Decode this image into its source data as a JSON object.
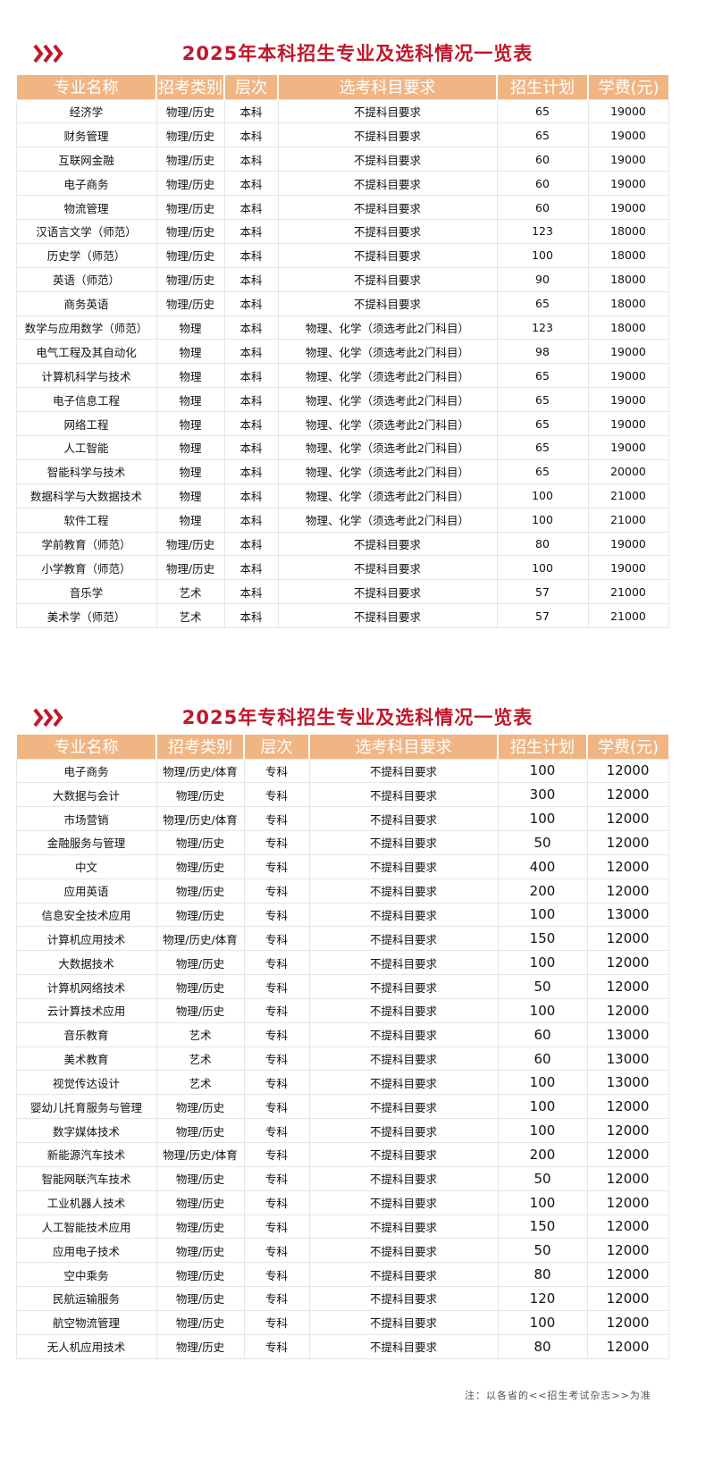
{
  "colors": {
    "title": "#c0182a",
    "header_bg": "#f0b583",
    "header_text": "#ffffff"
  },
  "headers": [
    "专业名称",
    "招考类别",
    "层次",
    "选考科目要求",
    "招生计划",
    "学费(元)"
  ],
  "benke": {
    "title": "2025年本科招生专业及选科情况一览表",
    "icon": "triple-chevron-right-icon",
    "rows": [
      [
        "经济学",
        "物理/历史",
        "本科",
        "不提科目要求",
        "65",
        "19000"
      ],
      [
        "财务管理",
        "物理/历史",
        "本科",
        "不提科目要求",
        "65",
        "19000"
      ],
      [
        "互联网金融",
        "物理/历史",
        "本科",
        "不提科目要求",
        "60",
        "19000"
      ],
      [
        "电子商务",
        "物理/历史",
        "本科",
        "不提科目要求",
        "60",
        "19000"
      ],
      [
        "物流管理",
        "物理/历史",
        "本科",
        "不提科目要求",
        "60",
        "19000"
      ],
      [
        "汉语言文学（师范）",
        "物理/历史",
        "本科",
        "不提科目要求",
        "123",
        "18000"
      ],
      [
        "历史学（师范）",
        "物理/历史",
        "本科",
        "不提科目要求",
        "100",
        "18000"
      ],
      [
        "英语（师范）",
        "物理/历史",
        "本科",
        "不提科目要求",
        "90",
        "18000"
      ],
      [
        "商务英语",
        "物理/历史",
        "本科",
        "不提科目要求",
        "65",
        "18000"
      ],
      [
        "数学与应用数学（师范）",
        "物理",
        "本科",
        "物理、化学（须选考此2门科目）",
        "123",
        "18000"
      ],
      [
        "电气工程及其自动化",
        "物理",
        "本科",
        "物理、化学（须选考此2门科目）",
        "98",
        "19000"
      ],
      [
        "计算机科学与技术",
        "物理",
        "本科",
        "物理、化学（须选考此2门科目）",
        "65",
        "19000"
      ],
      [
        "电子信息工程",
        "物理",
        "本科",
        "物理、化学（须选考此2门科目）",
        "65",
        "19000"
      ],
      [
        "网络工程",
        "物理",
        "本科",
        "物理、化学（须选考此2门科目）",
        "65",
        "19000"
      ],
      [
        "人工智能",
        "物理",
        "本科",
        "物理、化学（须选考此2门科目）",
        "65",
        "19000"
      ],
      [
        "智能科学与技术",
        "物理",
        "本科",
        "物理、化学（须选考此2门科目）",
        "65",
        "20000"
      ],
      [
        "数据科学与大数据技术",
        "物理",
        "本科",
        "物理、化学（须选考此2门科目）",
        "100",
        "21000"
      ],
      [
        "软件工程",
        "物理",
        "本科",
        "物理、化学（须选考此2门科目）",
        "100",
        "21000"
      ],
      [
        "学前教育（师范）",
        "物理/历史",
        "本科",
        "不提科目要求",
        "80",
        "19000"
      ],
      [
        "小学教育（师范）",
        "物理/历史",
        "本科",
        "不提科目要求",
        "100",
        "19000"
      ],
      [
        "音乐学",
        "艺术",
        "本科",
        "不提科目要求",
        "57",
        "21000"
      ],
      [
        "美术学（师范）",
        "艺术",
        "本科",
        "不提科目要求",
        "57",
        "21000"
      ]
    ]
  },
  "zhuanke": {
    "title": "2025年专科招生专业及选科情况一览表",
    "icon": "triple-chevron-right-icon",
    "rows": [
      [
        "电子商务",
        "物理/历史/体育",
        "专科",
        "不提科目要求",
        "100",
        "12000"
      ],
      [
        "大数据与会计",
        "物理/历史",
        "专科",
        "不提科目要求",
        "300",
        "12000"
      ],
      [
        "市场营销",
        "物理/历史/体育",
        "专科",
        "不提科目要求",
        "100",
        "12000"
      ],
      [
        "金融服务与管理",
        "物理/历史",
        "专科",
        "不提科目要求",
        "50",
        "12000"
      ],
      [
        "中文",
        "物理/历史",
        "专科",
        "不提科目要求",
        "400",
        "12000"
      ],
      [
        "应用英语",
        "物理/历史",
        "专科",
        "不提科目要求",
        "200",
        "12000"
      ],
      [
        "信息安全技术应用",
        "物理/历史",
        "专科",
        "不提科目要求",
        "100",
        "13000"
      ],
      [
        "计算机应用技术",
        "物理/历史/体育",
        "专科",
        "不提科目要求",
        "150",
        "12000"
      ],
      [
        "大数据技术",
        "物理/历史",
        "专科",
        "不提科目要求",
        "100",
        "12000"
      ],
      [
        "计算机网络技术",
        "物理/历史",
        "专科",
        "不提科目要求",
        "50",
        "12000"
      ],
      [
        "云计算技术应用",
        "物理/历史",
        "专科",
        "不提科目要求",
        "100",
        "12000"
      ],
      [
        "音乐教育",
        "艺术",
        "专科",
        "不提科目要求",
        "60",
        "13000"
      ],
      [
        "美术教育",
        "艺术",
        "专科",
        "不提科目要求",
        "60",
        "13000"
      ],
      [
        "视觉传达设计",
        "艺术",
        "专科",
        "不提科目要求",
        "100",
        "13000"
      ],
      [
        "婴幼儿托育服务与管理",
        "物理/历史",
        "专科",
        "不提科目要求",
        "100",
        "12000"
      ],
      [
        "数字媒体技术",
        "物理/历史",
        "专科",
        "不提科目要求",
        "100",
        "12000"
      ],
      [
        "新能源汽车技术",
        "物理/历史/体育",
        "专科",
        "不提科目要求",
        "200",
        "12000"
      ],
      [
        "智能网联汽车技术",
        "物理/历史",
        "专科",
        "不提科目要求",
        "50",
        "12000"
      ],
      [
        "工业机器人技术",
        "物理/历史",
        "专科",
        "不提科目要求",
        "100",
        "12000"
      ],
      [
        "人工智能技术应用",
        "物理/历史",
        "专科",
        "不提科目要求",
        "150",
        "12000"
      ],
      [
        "应用电子技术",
        "物理/历史",
        "专科",
        "不提科目要求",
        "50",
        "12000"
      ],
      [
        "空中乘务",
        "物理/历史",
        "专科",
        "不提科目要求",
        "80",
        "12000"
      ],
      [
        "民航运输服务",
        "物理/历史",
        "专科",
        "不提科目要求",
        "120",
        "12000"
      ],
      [
        "航空物流管理",
        "物理/历史",
        "专科",
        "不提科目要求",
        "100",
        "12000"
      ],
      [
        "无人机应用技术",
        "物理/历史",
        "专科",
        "不提科目要求",
        "80",
        "12000"
      ]
    ]
  },
  "note": "注：以各省的<<招生考试杂志>>为准"
}
